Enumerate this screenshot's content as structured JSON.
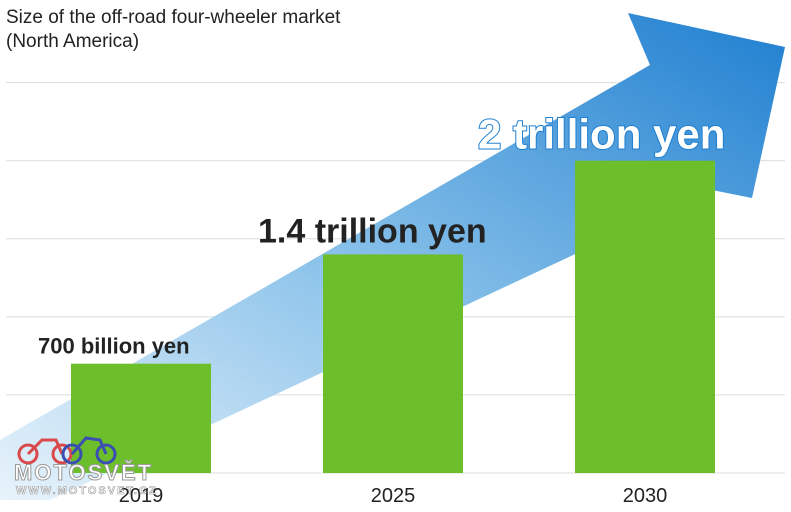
{
  "title": "Size of the off-road four-wheeler market",
  "subtitle": "(North America)",
  "watermark": {
    "name": "MOTOSVĚT",
    "url": "WWW.MOTOSVET.CZ"
  },
  "colors": {
    "bar": "#6cbf2a",
    "arrow_light": "#cfe6f7",
    "arrow_dark": "#1f7fd0",
    "grid": "#dcdcdc",
    "text": "#222222",
    "highlight_text": "#ffffff",
    "highlight_outline": "#1f7fd0"
  },
  "chart_data": {
    "type": "bar",
    "categories": [
      "2019",
      "2025",
      "2030"
    ],
    "values": [
      0.7,
      1.4,
      2.0
    ],
    "data_labels": [
      "700 billion yen",
      "1.4 trillion yen",
      "2 trillion yen"
    ],
    "title": "Size of the off-road four-wheeler market",
    "subtitle": "(North America)",
    "xlabel": "",
    "ylabel": "",
    "ylim": [
      0,
      2.6
    ],
    "grid": true,
    "legend": "none"
  }
}
